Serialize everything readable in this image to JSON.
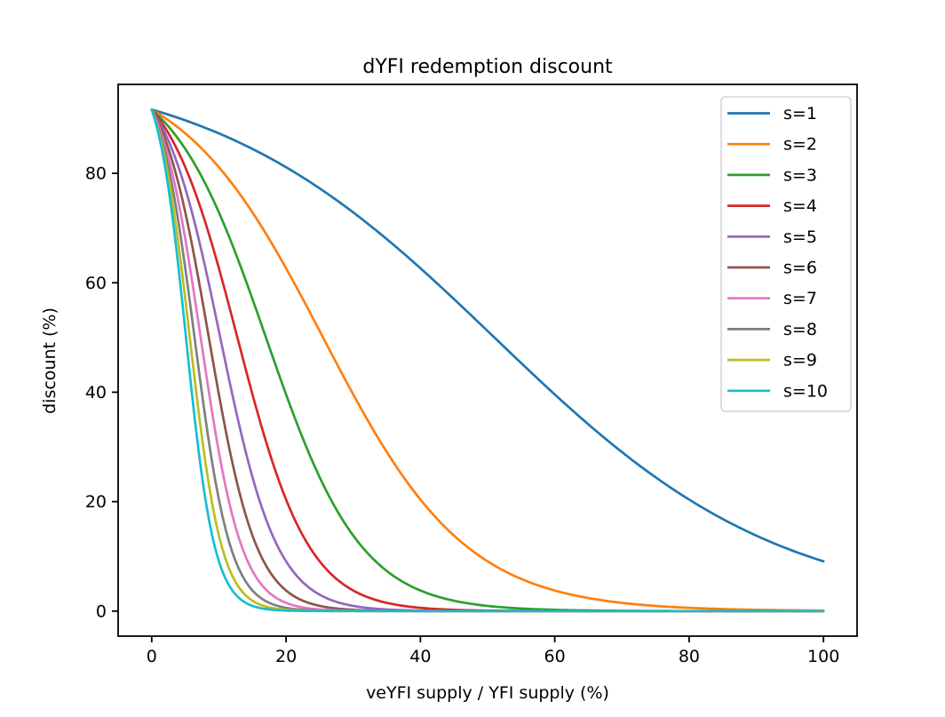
{
  "chart_data": {
    "type": "line",
    "title": "dYFI redemption discount",
    "xlabel": "veYFI supply / YFI supply (%)",
    "ylabel": "discount (%)",
    "x_ticks": [
      0,
      20,
      40,
      60,
      80,
      100
    ],
    "y_ticks": [
      0,
      20,
      40,
      60,
      80
    ],
    "xlim": [
      -5,
      105
    ],
    "ylim": [
      -4.58,
      96.25
    ],
    "grid": false,
    "legend_position": "upper right",
    "background_color": "#ffffff",
    "axes_edge_color": "#000000",
    "legend_border_color": "#cccccc",
    "formula": "discount(x) = 100 / (1 + 10 * exp(4.7 * (s * x / 100 - 1)))",
    "formula_params": {
      "a": 10,
      "k": 4.7,
      "x_min": 0,
      "x_max": 100
    },
    "x_sample": [
      0,
      5,
      10,
      15,
      20,
      25,
      30,
      35,
      40,
      45,
      50,
      55,
      60,
      65,
      70,
      75,
      80,
      85,
      90,
      95,
      100
    ],
    "series": [
      {
        "name": "s=1",
        "s": 1,
        "color": "#1f77b4",
        "values": [
          91.66,
          89.68,
          87.28,
          84.45,
          81.12,
          77.23,
          72.86,
          67.95,
          62.65,
          57.03,
          51.18,
          45.32,
          39.59,
          34.13,
          29.06,
          24.46,
          20.38,
          16.83,
          13.79,
          11.23,
          9.09
        ]
      },
      {
        "name": "s=2",
        "s": 2,
        "color": "#ff7f0e",
        "values": [
          91.66,
          87.28,
          81.12,
          72.86,
          62.65,
          51.18,
          39.59,
          29.06,
          20.38,
          13.79,
          9.09,
          5.88,
          3.76,
          2.38,
          1.5,
          0.94,
          0.59,
          0.37,
          0.23,
          0.14,
          0.09
        ]
      },
      {
        "name": "s=3",
        "s": 3,
        "color": "#2ca02c",
        "values": [
          91.66,
          84.45,
          72.86,
          57.03,
          39.59,
          24.46,
          13.79,
          7.33,
          3.76,
          1.89,
          0.94,
          0.47,
          0.23,
          0.11,
          0.06,
          0.03,
          0.01,
          0.01,
          0,
          0,
          0
        ]
      },
      {
        "name": "s=4",
        "s": 4,
        "color": "#d62728",
        "values": [
          91.66,
          81.12,
          62.65,
          39.59,
          20.38,
          9.09,
          3.76,
          1.5,
          0.59,
          0.23,
          0.09,
          0.04,
          0.01,
          0.01,
          0,
          0,
          0,
          0,
          0,
          0,
          0
        ]
      },
      {
        "name": "s=5",
        "s": 5,
        "color": "#9467bd",
        "values": [
          91.66,
          77.23,
          51.18,
          24.46,
          9.09,
          3.0,
          0.94,
          0.29,
          0.09,
          0.03,
          0.01,
          0,
          0,
          0,
          0,
          0,
          0,
          0,
          0,
          0,
          0
        ]
      },
      {
        "name": "s=6",
        "s": 6,
        "color": "#8c564b",
        "values": [
          91.66,
          72.86,
          39.59,
          13.79,
          3.76,
          0.94,
          0.23,
          0.06,
          0.01,
          0,
          0,
          0,
          0,
          0,
          0,
          0,
          0,
          0,
          0,
          0,
          0
        ]
      },
      {
        "name": "s=7",
        "s": 7,
        "color": "#e377c2",
        "values": [
          91.66,
          67.95,
          29.06,
          7.33,
          1.5,
          0.29,
          0.06,
          0.01,
          0,
          0,
          0,
          0,
          0,
          0,
          0,
          0,
          0,
          0,
          0,
          0,
          0
        ]
      },
      {
        "name": "s=8",
        "s": 8,
        "color": "#7f7f7f",
        "values": [
          91.66,
          62.65,
          20.38,
          3.76,
          0.59,
          0.09,
          0.01,
          0,
          0,
          0,
          0,
          0,
          0,
          0,
          0,
          0,
          0,
          0,
          0,
          0,
          0
        ]
      },
      {
        "name": "s=9",
        "s": 9,
        "color": "#bcbd22",
        "values": [
          91.66,
          57.03,
          13.79,
          1.89,
          0.23,
          0.03,
          0,
          0,
          0,
          0,
          0,
          0,
          0,
          0,
          0,
          0,
          0,
          0,
          0,
          0,
          0
        ]
      },
      {
        "name": "s=10",
        "s": 10,
        "color": "#17becf",
        "values": [
          91.66,
          51.18,
          9.09,
          0.94,
          0.09,
          0.01,
          0,
          0,
          0,
          0,
          0,
          0,
          0,
          0,
          0,
          0,
          0,
          0,
          0,
          0,
          0
        ]
      }
    ]
  }
}
